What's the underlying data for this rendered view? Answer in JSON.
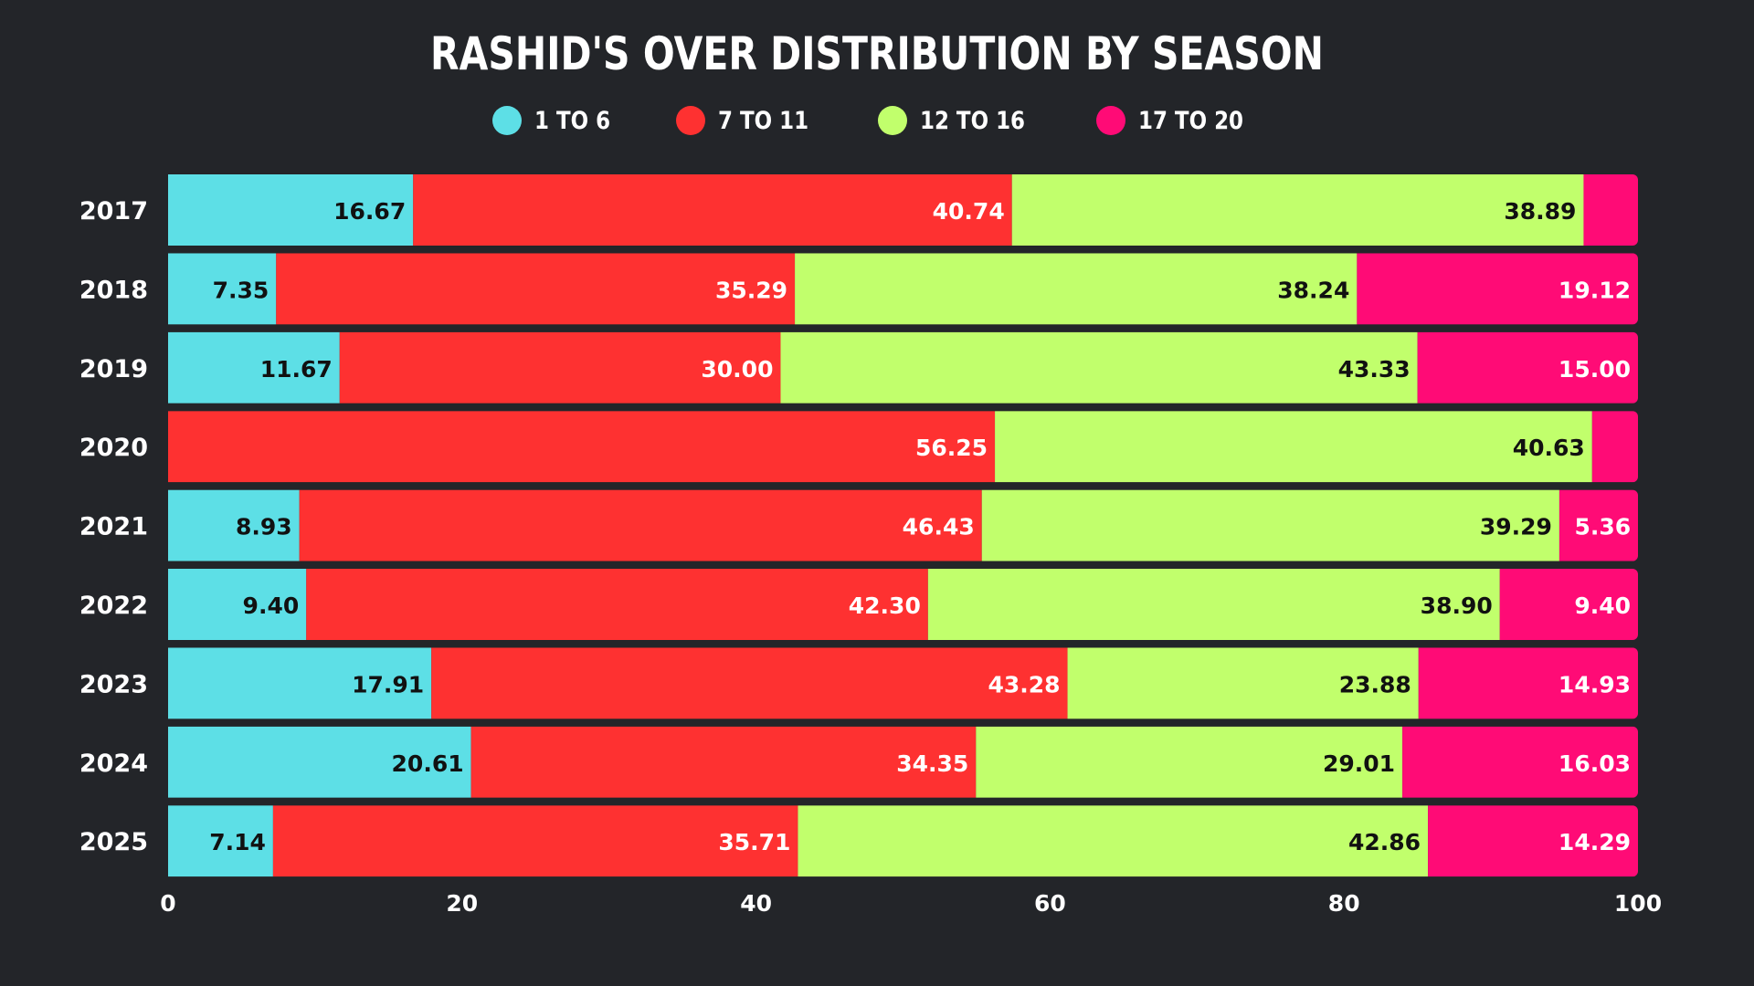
{
  "chart_data": {
    "type": "bar",
    "orientation": "horizontal",
    "stacked": true,
    "title": "RASHID'S OVER DISTRIBUTION BY SEASON",
    "xlabel": "",
    "ylabel": "",
    "xlim": [
      0,
      100
    ],
    "x_ticks": [
      "0",
      "20",
      "40",
      "60",
      "80",
      "100"
    ],
    "grid": false,
    "legend_position": "top-center",
    "categories": [
      "2017",
      "2018",
      "2019",
      "2020",
      "2021",
      "2022",
      "2023",
      "2024",
      "2025"
    ],
    "series": [
      {
        "name": "1 TO 6",
        "color": "#5ddfe6",
        "label_color": "#111111",
        "values": [
          16.67,
          7.35,
          11.67,
          0,
          8.93,
          9.4,
          17.91,
          20.61,
          7.14
        ],
        "labels": [
          "16.67",
          "7.35",
          "11.67",
          "",
          "8.93",
          "9.40",
          "17.91",
          "20.61",
          "7.14"
        ]
      },
      {
        "name": "7 TO 11",
        "color": "#fe3131",
        "label_color": "#ffffff",
        "values": [
          40.74,
          35.29,
          30.0,
          56.25,
          46.43,
          42.3,
          43.28,
          34.35,
          35.71
        ],
        "labels": [
          "40.74",
          "35.29",
          "30.00",
          "56.25",
          "46.43",
          "42.30",
          "43.28",
          "34.35",
          "35.71"
        ]
      },
      {
        "name": "12 TO 16",
        "color": "#c1ff6c",
        "label_color": "#111111",
        "values": [
          38.89,
          38.24,
          43.33,
          40.63,
          39.29,
          38.9,
          23.88,
          29.01,
          42.86
        ],
        "labels": [
          "38.89",
          "38.24",
          "43.33",
          "40.63",
          "39.29",
          "38.90",
          "23.88",
          "29.01",
          "42.86"
        ]
      },
      {
        "name": "17 TO 20",
        "color": "#ff0b76",
        "label_color": "#ffffff",
        "values": [
          3.7,
          19.12,
          15.0,
          3.12,
          5.36,
          9.4,
          14.93,
          16.03,
          14.29
        ],
        "labels": [
          "",
          "19.12",
          "15.00",
          "",
          "5.36",
          "9.40",
          "14.93",
          "16.03",
          "14.29"
        ]
      }
    ]
  }
}
